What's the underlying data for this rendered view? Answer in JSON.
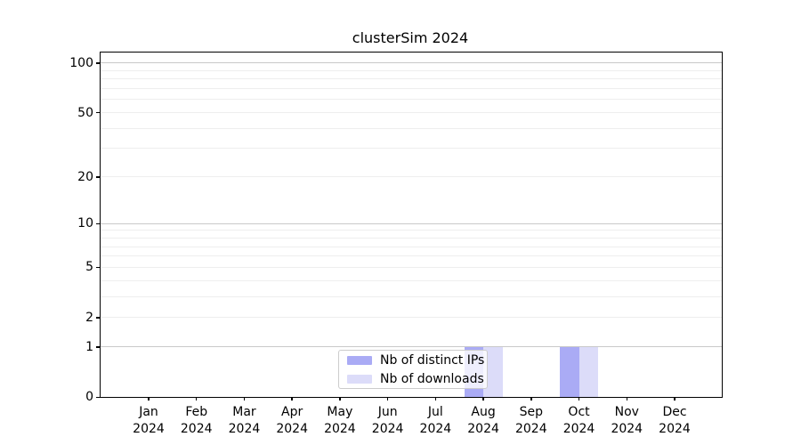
{
  "chart_data": {
    "type": "bar",
    "title": "clusterSim 2024",
    "categories": [
      "Jan 2024",
      "Feb 2024",
      "Mar 2024",
      "Apr 2024",
      "May 2024",
      "Jun 2024",
      "Jul 2024",
      "Aug 2024",
      "Sep 2024",
      "Oct 2024",
      "Nov 2024",
      "Dec 2024"
    ],
    "series": [
      {
        "name": "Nb of distinct IPs",
        "color": "#aaabf5",
        "values": [
          0,
          0,
          0,
          0,
          0,
          0,
          0,
          1,
          0,
          1,
          0,
          0
        ]
      },
      {
        "name": "Nb of downloads",
        "color": "#dcdcf9",
        "values": [
          0,
          0,
          0,
          0,
          0,
          0,
          0,
          1,
          0,
          1,
          0,
          0
        ]
      }
    ],
    "yscale": "log1p",
    "ylim": [
      0,
      115
    ],
    "ytick_values": [
      0,
      1,
      2,
      5,
      10,
      20,
      50,
      100
    ],
    "ytick_labels": [
      "0",
      "1",
      "2",
      "5",
      "10",
      "20",
      "50",
      "100"
    ],
    "minor_gridline_values": [
      2,
      3,
      4,
      5,
      6,
      7,
      8,
      9,
      20,
      30,
      40,
      50,
      60,
      70,
      80,
      90
    ],
    "major_gridline_values": [
      1,
      10,
      100
    ],
    "grid": "horizontal",
    "legend_position": "inside-bottom-center",
    "colors": {
      "major_grid": "#c9c9c9",
      "minor_grid": "#eeeeee",
      "spine": "#000000",
      "text": "#000000",
      "legend_border": "#cccccc"
    }
  }
}
